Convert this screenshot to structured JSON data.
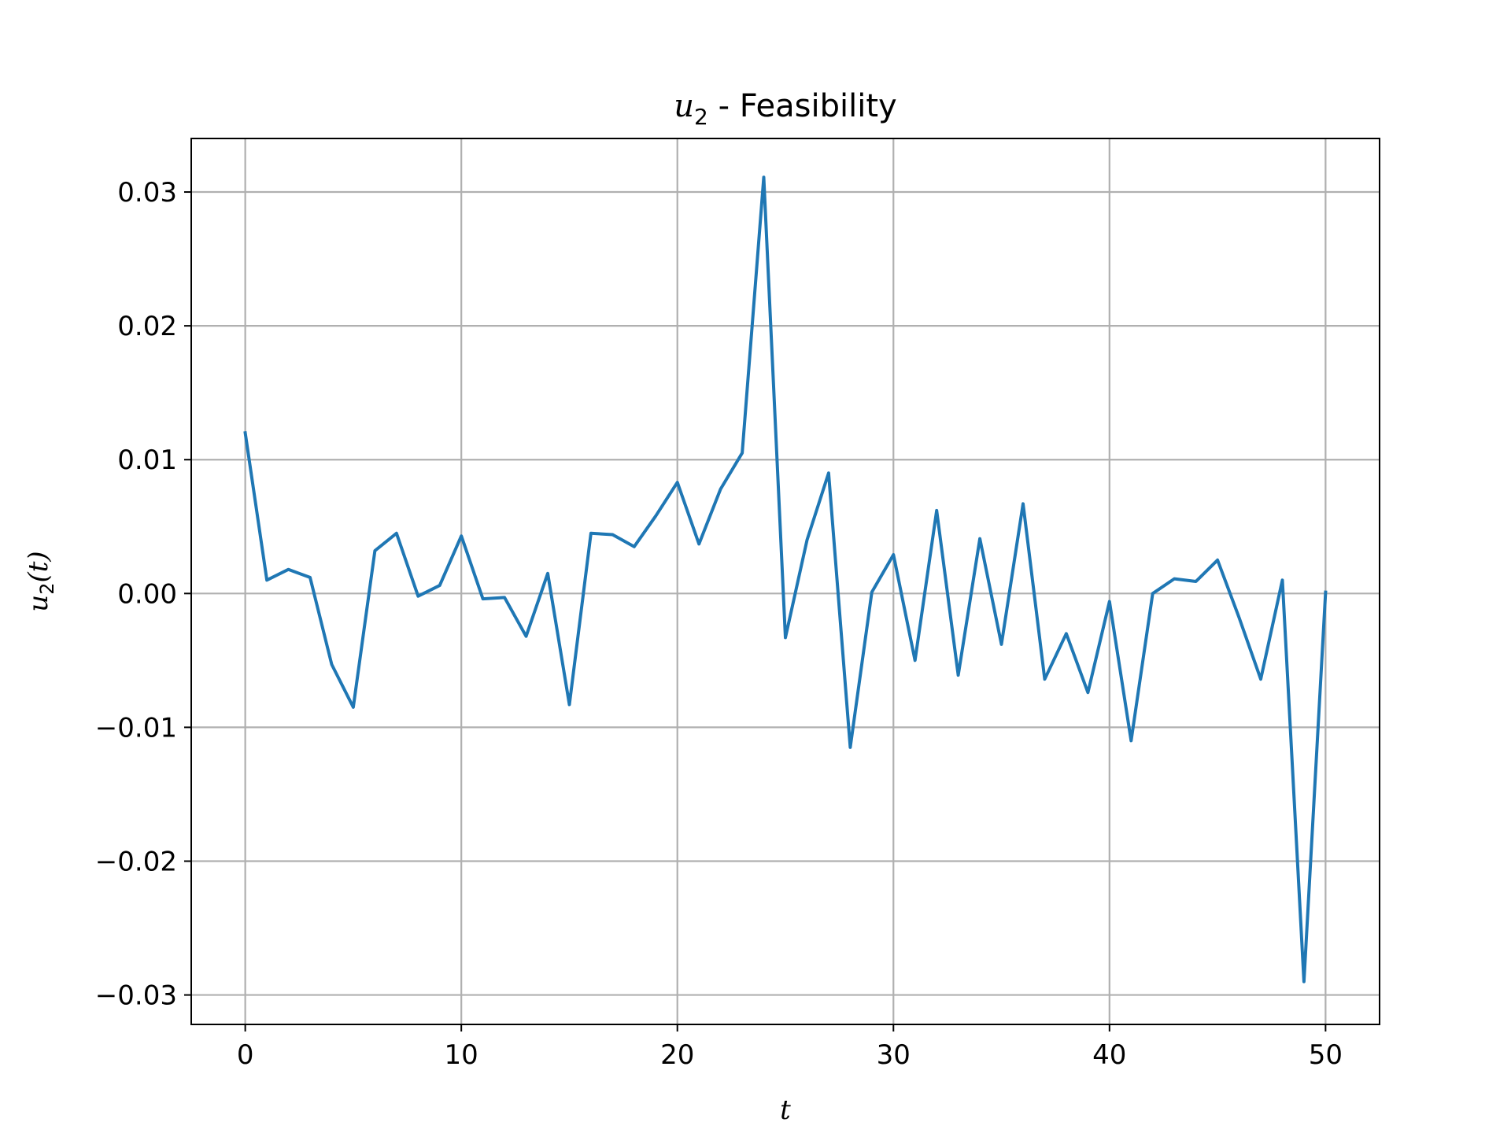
{
  "chart_data": {
    "type": "line",
    "title": {
      "math_symbol": "u",
      "math_subscript": "2",
      "text": " - Feasibility"
    },
    "xlabel": "t",
    "ylabel": {
      "symbol": "u",
      "subscript": "2",
      "arg": "(t)"
    },
    "xlim": [
      -2.5,
      52.5
    ],
    "ylim": [
      -0.0322,
      0.034
    ],
    "xticks": [
      0,
      10,
      20,
      30,
      40,
      50
    ],
    "xtick_labels": [
      "0",
      "10",
      "20",
      "30",
      "40",
      "50"
    ],
    "yticks": [
      -0.03,
      -0.02,
      -0.01,
      0.0,
      0.01,
      0.02,
      0.03
    ],
    "ytick_labels": [
      "−0.03",
      "−0.02",
      "−0.01",
      "0.00",
      "0.01",
      "0.02",
      "0.03"
    ],
    "grid": true,
    "color": "#1f77b4",
    "series": [
      {
        "x": [
          0,
          1,
          2,
          3,
          4,
          5,
          6,
          7,
          8,
          9,
          10,
          11,
          12,
          13,
          14,
          15,
          16,
          17,
          18,
          19,
          20,
          21,
          22,
          23,
          24,
          25,
          26,
          27,
          28,
          29,
          30,
          31,
          32,
          33,
          34,
          35,
          36,
          37,
          38,
          39,
          40,
          41,
          42,
          43,
          44,
          45,
          46,
          47,
          48,
          49,
          50
        ],
        "y": [
          0.012,
          0.001,
          0.0018,
          0.0012,
          -0.0053,
          -0.0085,
          0.0032,
          0.0045,
          -0.0002,
          0.0006,
          0.0043,
          -0.0004,
          -0.0003,
          -0.0032,
          0.0015,
          -0.0083,
          0.0045,
          0.0044,
          0.0035,
          0.0058,
          0.0083,
          0.0037,
          0.0078,
          0.0105,
          0.0311,
          -0.0033,
          0.004,
          0.009,
          -0.0115,
          0.0001,
          0.0029,
          -0.005,
          0.0062,
          -0.0061,
          0.0041,
          -0.0038,
          0.0067,
          -0.0064,
          -0.003,
          -0.0074,
          -0.0006,
          -0.011,
          0.0,
          0.0011,
          0.0009,
          0.0025,
          -0.0018,
          -0.0064,
          0.001,
          -0.029,
          0.0001
        ]
      }
    ]
  }
}
